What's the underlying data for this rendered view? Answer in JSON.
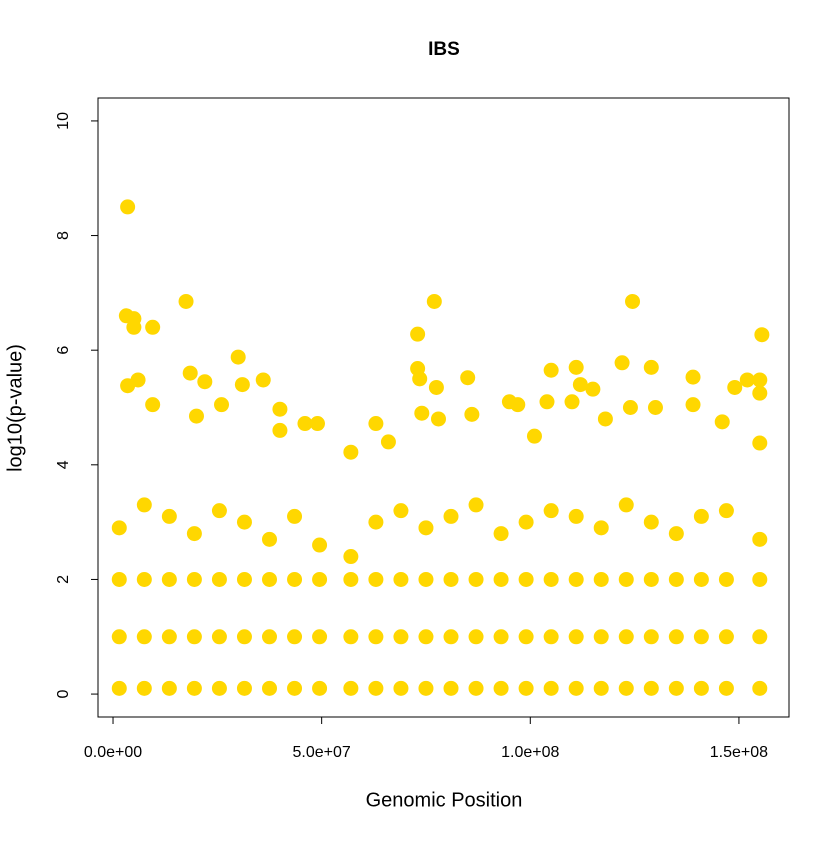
{
  "chart_data": {
    "type": "scatter",
    "title": "IBS",
    "x_label": "Genomic Position",
    "y_label": "log10(p-value)",
    "color": "#FFD700",
    "xlim": [
      -3600000,
      162000000
    ],
    "ylim": [
      -0.4,
      10.4
    ],
    "xticks": [
      {
        "value": 0,
        "label": "0.0e+00"
      },
      {
        "value": 50000000,
        "label": "5.0e+07"
      },
      {
        "value": 100000000,
        "label": "1.0e+08"
      },
      {
        "value": 150000000,
        "label": "1.5e+08"
      }
    ],
    "yticks": [
      0,
      2,
      4,
      6,
      8,
      10
    ],
    "x": [
      1500000,
      7500000,
      13500000,
      19500000,
      25500000,
      31500000,
      37500000,
      43500000,
      49500000,
      57000000,
      63000000,
      69000000,
      75000000,
      81000000,
      87000000,
      93000000,
      99000000,
      105000000,
      111000000,
      117000000,
      123000000,
      129000000,
      135000000,
      141000000,
      147000000,
      155000000,
      1500000,
      7500000,
      13500000,
      19500000,
      25500000,
      31500000,
      37500000,
      43500000,
      49500000,
      57000000,
      63000000,
      69000000,
      75000000,
      81000000,
      87000000,
      93000000,
      99000000,
      105000000,
      111000000,
      117000000,
      123000000,
      129000000,
      135000000,
      141000000,
      147000000,
      155000000,
      1500000,
      7500000,
      13500000,
      19500000,
      25500000,
      31500000,
      37500000,
      43500000,
      49500000,
      57000000,
      63000000,
      69000000,
      75000000,
      81000000,
      87000000,
      93000000,
      99000000,
      105000000,
      111000000,
      117000000,
      123000000,
      129000000,
      135000000,
      141000000,
      147000000,
      155000000,
      1500000,
      7500000,
      13500000,
      19500000,
      25500000,
      31500000,
      37500000,
      43500000,
      49500000,
      57000000,
      63000000,
      69000000,
      75000000,
      81000000,
      87000000,
      93000000,
      99000000,
      105000000,
      111000000,
      117000000,
      123000000,
      129000000,
      135000000,
      141000000,
      147000000,
      155000000,
      3500000,
      3200000,
      5000000,
      5000000,
      9500000,
      17500000,
      30000000,
      18500000,
      36000000,
      6000000,
      3500000,
      22000000,
      31000000,
      9500000,
      40000000,
      46000000,
      49000000,
      57000000,
      73000000,
      77000000,
      73000000,
      73500000,
      77500000,
      85000000,
      86000000,
      95000000,
      97000000,
      105000000,
      111000000,
      112000000,
      115000000,
      122000000,
      124500000,
      129000000,
      139000000,
      139000000,
      149000000,
      152000000,
      155000000,
      155500000,
      155000000,
      146000000,
      63000000,
      66000000,
      74000000,
      78000000,
      104000000,
      110000000,
      118000000,
      124000000,
      130000000,
      40000000,
      26000000,
      20000000,
      155000000,
      101000000
    ],
    "values": [
      0.1,
      0.1,
      0.1,
      0.1,
      0.1,
      0.1,
      0.1,
      0.1,
      0.1,
      0.1,
      0.1,
      0.1,
      0.1,
      0.1,
      0.1,
      0.1,
      0.1,
      0.1,
      0.1,
      0.1,
      0.1,
      0.1,
      0.1,
      0.1,
      0.1,
      0.1,
      1.0,
      1.0,
      1.0,
      1.0,
      1.0,
      1.0,
      1.0,
      1.0,
      1.0,
      1.0,
      1.0,
      1.0,
      1.0,
      1.0,
      1.0,
      1.0,
      1.0,
      1.0,
      1.0,
      1.0,
      1.0,
      1.0,
      1.0,
      1.0,
      1.0,
      1.0,
      2.0,
      2.0,
      2.0,
      2.0,
      2.0,
      2.0,
      2.0,
      2.0,
      2.0,
      2.0,
      2.0,
      2.0,
      2.0,
      2.0,
      2.0,
      2.0,
      2.0,
      2.0,
      2.0,
      2.0,
      2.0,
      2.0,
      2.0,
      2.0,
      2.0,
      2.0,
      2.9,
      3.3,
      3.1,
      2.8,
      3.2,
      3.0,
      2.7,
      3.1,
      2.6,
      2.4,
      3.0,
      3.2,
      2.9,
      3.1,
      3.3,
      2.8,
      3.0,
      3.2,
      3.1,
      2.9,
      3.3,
      3.0,
      2.8,
      3.1,
      3.2,
      2.7,
      8.5,
      6.6,
      6.55,
      6.4,
      6.4,
      6.85,
      5.88,
      5.6,
      5.48,
      5.48,
      5.38,
      5.45,
      5.4,
      5.05,
      4.97,
      4.72,
      4.72,
      4.22,
      6.28,
      6.85,
      5.68,
      5.5,
      5.35,
      5.52,
      4.88,
      5.1,
      5.05,
      5.65,
      5.7,
      5.4,
      5.32,
      5.78,
      6.85,
      5.7,
      5.53,
      5.05,
      5.35,
      5.48,
      5.48,
      6.27,
      5.25,
      4.75,
      4.72,
      4.4,
      4.9,
      4.8,
      5.1,
      5.1,
      4.8,
      5.0,
      5.0,
      4.6,
      5.05,
      4.85,
      4.38,
      4.5
    ]
  }
}
